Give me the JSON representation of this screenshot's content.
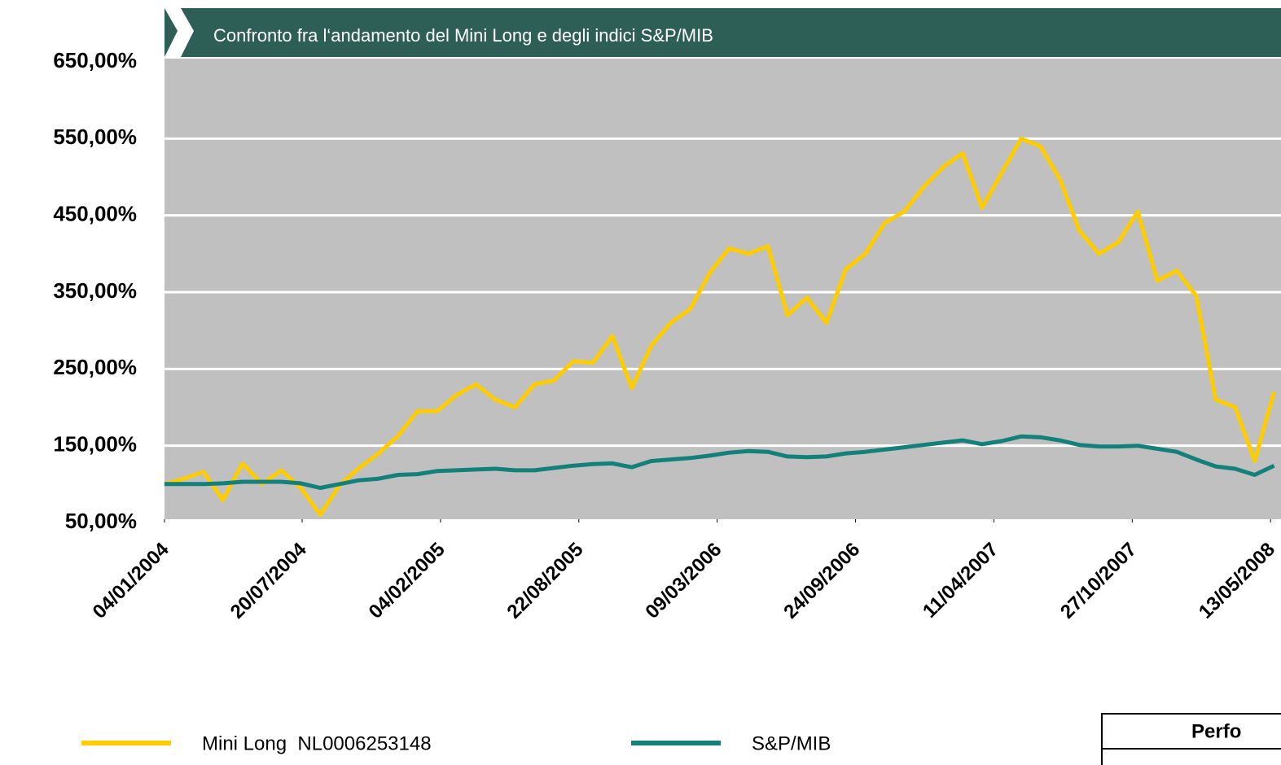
{
  "chart_data": {
    "type": "line",
    "title": "Confronto fra l‘andamento del Mini Long e degli indici S&P/MIB",
    "x": [
      "04/01/2004",
      "01/02/2004",
      "29/02/2004",
      "28/03/2004",
      "25/04/2004",
      "23/05/2004",
      "20/06/2004",
      "18/07/2004",
      "15/08/2004",
      "12/09/2004",
      "10/10/2004",
      "07/11/2004",
      "05/12/2004",
      "02/01/2005",
      "30/01/2005",
      "27/02/2005",
      "27/03/2005",
      "24/04/2005",
      "22/05/2005",
      "19/06/2005",
      "17/07/2005",
      "14/08/2005",
      "11/09/2005",
      "09/10/2005",
      "06/11/2005",
      "04/12/2005",
      "01/01/2006",
      "29/01/2006",
      "26/02/2006",
      "26/03/2006",
      "23/04/2006",
      "21/05/2006",
      "18/06/2006",
      "16/07/2006",
      "13/08/2006",
      "10/09/2006",
      "08/10/2006",
      "05/11/2006",
      "03/12/2006",
      "31/12/2006",
      "28/01/2007",
      "25/02/2007",
      "25/03/2007",
      "22/04/2007",
      "20/05/2007",
      "17/06/2007",
      "15/07/2007",
      "12/08/2007",
      "09/09/2007",
      "07/10/2007",
      "04/11/2007",
      "02/12/2007",
      "30/12/2007",
      "27/01/2008",
      "24/02/2008",
      "23/03/2008",
      "20/04/2008",
      "18/05/2008"
    ],
    "series": [
      {
        "name": "Mini Long  NL0006253148",
        "color": "#ffcc00",
        "values": [
          100,
          107,
          116,
          79,
          127,
          100,
          118,
          95,
          60,
          99,
          121,
          140,
          163,
          195,
          195,
          216,
          230,
          210,
          200,
          230,
          235,
          260,
          258,
          293,
          225,
          280,
          310,
          328,
          375,
          407,
          400,
          410,
          320,
          343,
          310,
          380,
          400,
          440,
          455,
          487,
          513,
          531,
          460,
          505,
          550,
          540,
          497,
          430,
          400,
          415,
          455,
          365,
          378,
          345,
          210,
          200,
          130,
          220
        ]
      },
      {
        "name": "S&P/MIB",
        "color": "#13807a",
        "values": [
          100,
          100,
          100,
          101,
          103,
          103,
          103,
          101,
          95,
          100,
          105,
          107,
          112,
          113,
          117,
          118,
          119,
          120,
          118,
          118,
          121,
          124,
          126,
          127,
          122,
          130,
          132,
          134,
          137,
          141,
          143,
          142,
          136,
          135,
          136,
          140,
          142,
          145,
          148,
          151,
          154,
          157,
          152,
          156,
          162,
          161,
          157,
          151,
          149,
          149,
          150,
          146,
          142,
          132,
          123,
          120,
          112,
          124
        ]
      }
    ],
    "xlim": [
      "04/01/2004",
      "28/05/2008"
    ],
    "xticks": [
      "04/01/2004",
      "20/07/2004",
      "04/02/2005",
      "22/08/2005",
      "09/03/2006",
      "24/09/2006",
      "11/04/2007",
      "27/10/2007",
      "13/05/2008"
    ],
    "ylim": [
      50,
      650
    ],
    "yticks": [
      {
        "value": 50,
        "label": "50,00%"
      },
      {
        "value": 150,
        "label": "150,00%"
      },
      {
        "value": 250,
        "label": "250,00%"
      },
      {
        "value": 350,
        "label": "350,00%"
      },
      {
        "value": 450,
        "label": "450,00%"
      },
      {
        "value": 550,
        "label": "550,00%"
      },
      {
        "value": 650,
        "label": "650,00%"
      }
    ],
    "grid": true,
    "grid_color": "#ffffff",
    "plot_background": "#c0c0c0",
    "header_color": "#2e5f57",
    "table_header": "Perfo"
  }
}
